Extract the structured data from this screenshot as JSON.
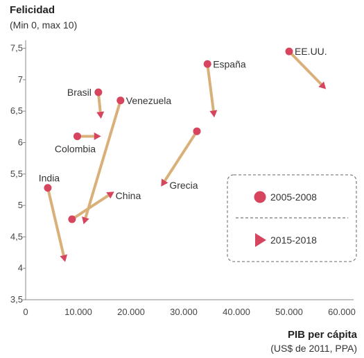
{
  "chart_data": {
    "type": "scatter",
    "title": "",
    "ylabel": "Felicidad",
    "ylabel_sub": "(Min 0, max 10)",
    "xlabel": "PIB per cápita",
    "xlabel_sub": "(US$ de 2011, PPA)",
    "xlim": [
      0,
      65000
    ],
    "ylim": [
      3.5,
      7.6
    ],
    "x_ticks": [
      {
        "value": 0,
        "label": "0"
      },
      {
        "value": 10000,
        "label": "10.000"
      },
      {
        "value": 20000,
        "label": "20.000"
      },
      {
        "value": 30000,
        "label": "30.000"
      },
      {
        "value": 40000,
        "label": "40.000"
      },
      {
        "value": 50000,
        "label": "50.000"
      },
      {
        "value": 60000,
        "label": "60.000"
      }
    ],
    "y_ticks": [
      {
        "value": 3.5,
        "label": "3,5"
      },
      {
        "value": 4,
        "label": "4"
      },
      {
        "value": 4.5,
        "label": "4,5"
      },
      {
        "value": 5,
        "label": "5"
      },
      {
        "value": 5.5,
        "label": "5,5"
      },
      {
        "value": 6,
        "label": "6"
      },
      {
        "value": 6.5,
        "label": "6,5"
      },
      {
        "value": 7,
        "label": "7"
      },
      {
        "value": 7.5,
        "label": "7,5"
      }
    ],
    "grid": false,
    "legend_position": "right",
    "series": [
      {
        "name": "2005-2008",
        "marker": "circle"
      },
      {
        "name": "2015-2018",
        "marker": "triangle"
      }
    ],
    "countries": [
      {
        "name": "EE.UU.",
        "x1": 50000,
        "y1": 7.45,
        "x2": 57000,
        "y2": 6.85,
        "label_pos": "right"
      },
      {
        "name": "España",
        "x1": 34500,
        "y1": 7.25,
        "x2": 35800,
        "y2": 6.4,
        "label_pos": "right"
      },
      {
        "name": "Brasil",
        "x1": 13800,
        "y1": 6.8,
        "x2": 14300,
        "y2": 6.38,
        "label_pos": "left"
      },
      {
        "name": "Venezuela",
        "x1": 18000,
        "y1": 6.67,
        "x2": 11000,
        "y2": 4.7,
        "label_pos": "right"
      },
      {
        "name": "Colombia",
        "x1": 9800,
        "y1": 6.1,
        "x2": 14300,
        "y2": 6.1,
        "label_pos": "below-left"
      },
      {
        "name": "Grecia",
        "x1": 32500,
        "y1": 6.18,
        "x2": 25700,
        "y2": 5.3,
        "label_pos": "right"
      },
      {
        "name": "India",
        "x1": 4200,
        "y1": 5.28,
        "x2": 7500,
        "y2": 4.1,
        "label_pos": "above"
      },
      {
        "name": "China",
        "x1": 8800,
        "y1": 4.78,
        "x2": 16800,
        "y2": 5.22,
        "label_pos": "right"
      }
    ],
    "colors": {
      "marker": "#d6445e",
      "arrow": "#d9b07a",
      "legend_border": "#666666"
    }
  }
}
